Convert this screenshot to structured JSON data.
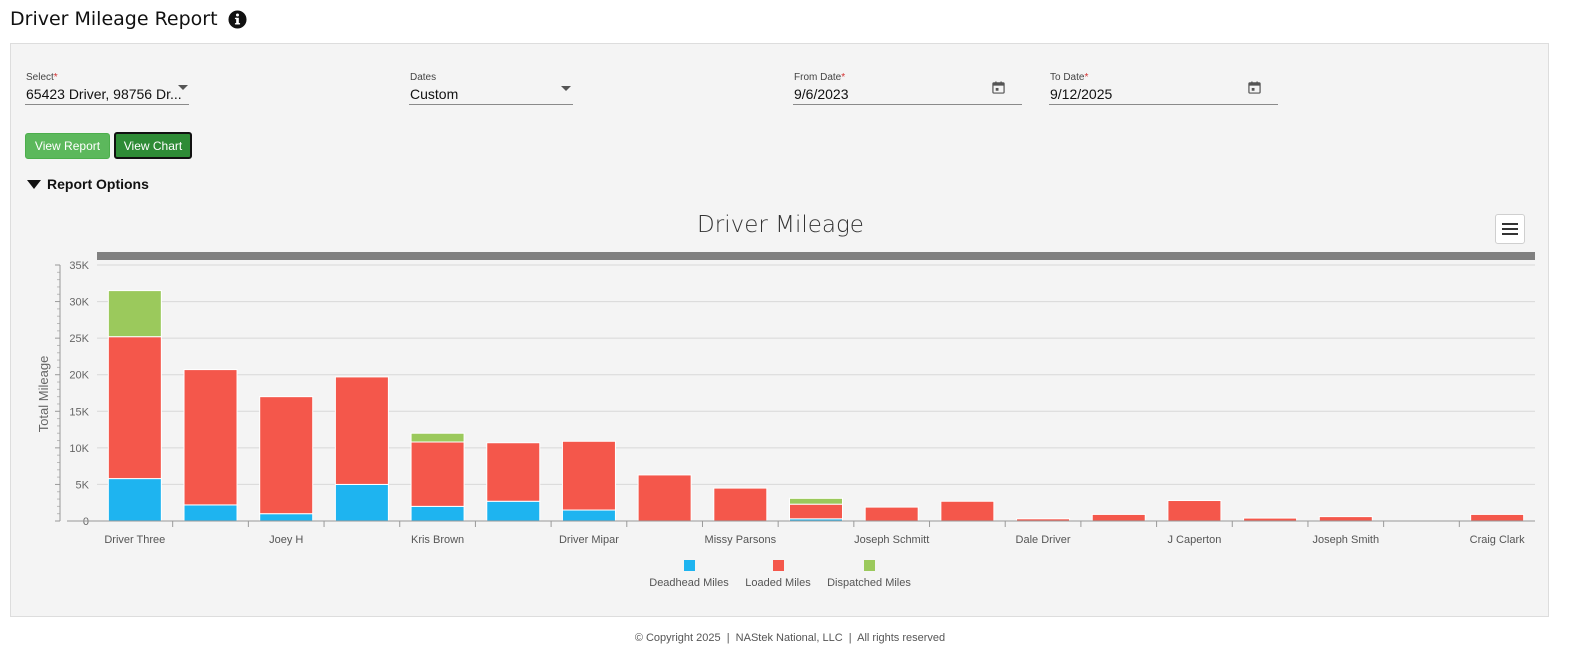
{
  "page": {
    "title": "Driver Mileage Report"
  },
  "filters": {
    "select": {
      "label": "Select",
      "value": "65423 Driver, 98756 Dr..."
    },
    "dates": {
      "label": "Dates",
      "value": "Custom"
    },
    "from_date": {
      "label": "From Date",
      "value": "9/6/2023"
    },
    "to_date": {
      "label": "To Date",
      "value": "9/12/2025"
    },
    "required_mark": "*"
  },
  "buttons": {
    "view_report": "View Report",
    "view_chart": "View Chart"
  },
  "report_options_label": "Report Options",
  "colors": {
    "deadhead": "#1eb4f0",
    "loaded": "#f4574b",
    "dispatched": "#9bc95c",
    "button_green": "#5cb85c",
    "button_active": "#2e8b36"
  },
  "chart_data": {
    "type": "bar",
    "stacked": true,
    "title": "Driver Mileage",
    "ylabel": "Total Mileage",
    "xlabel": "",
    "ylim": [
      0,
      35000
    ],
    "yticks": [
      "0",
      "5K",
      "10K",
      "15K",
      "20K",
      "25K",
      "30K",
      "35K"
    ],
    "categories": [
      "Driver Three",
      "",
      "Joey H",
      "",
      "Kris Brown",
      "",
      "Driver Mipar",
      "",
      "Missy Parsons",
      "",
      "Joseph Schmitt",
      "",
      "Dale Driver",
      "",
      "J Caperton",
      "",
      "Joseph Smith",
      "",
      "Craig Clark"
    ],
    "series": [
      {
        "name": "Deadhead Miles",
        "values": [
          5800,
          2200,
          1000,
          5000,
          2000,
          2700,
          1500,
          0,
          0,
          300,
          0,
          0,
          0,
          0,
          0,
          0,
          0,
          0,
          0
        ]
      },
      {
        "name": "Loaded Miles",
        "values": [
          19400,
          18500,
          16000,
          14700,
          8800,
          8000,
          9400,
          6300,
          4500,
          2000,
          1900,
          2700,
          300,
          900,
          2800,
          400,
          600,
          0,
          900
        ]
      },
      {
        "name": "Dispatched Miles",
        "values": [
          6300,
          0,
          0,
          0,
          1200,
          0,
          0,
          0,
          0,
          800,
          0,
          0,
          0,
          0,
          0,
          0,
          0,
          0,
          0
        ]
      }
    ],
    "grid": true,
    "legend": "bottom-center"
  },
  "footer": "© Copyright 2025  |  NAStek National, LLC  |  All rights reserved"
}
